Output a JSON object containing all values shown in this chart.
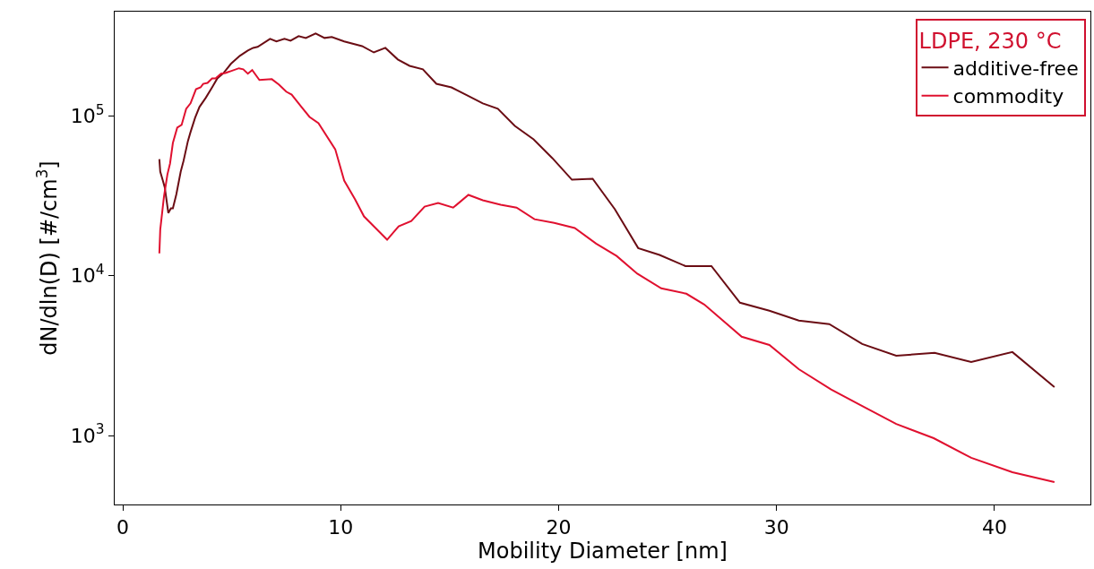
{
  "chart_data": {
    "type": "line",
    "xlabel": "Mobility Diameter [nm]",
    "ylabel": "dN/dln(D) [#/cm$^{3}$]",
    "legend_title": "LDPE, 230 °C",
    "legend": "top right",
    "log": "y",
    "marker": "none",
    "line_style": "solid",
    "xlim": [
      -0.37,
      44.4
    ],
    "xticks": [
      0,
      10,
      20,
      30,
      40
    ],
    "ylim": [
      370,
      450000
    ],
    "yticks": [
      {
        "value": 1000,
        "label": "10$^{3}$"
      },
      {
        "value": 10000,
        "label": "10$^{4}$"
      },
      {
        "value": 100000,
        "label": "10$^{5}$"
      }
    ],
    "series": [
      {
        "name": "additive-free",
        "color": "#6b0d14",
        "x": [
          1.68,
          1.72,
          1.84,
          1.93,
          2.09,
          2.21,
          2.3,
          2.46,
          2.66,
          2.79,
          2.99,
          3.11,
          3.32,
          3.52,
          3.81,
          4.1,
          4.34,
          4.63,
          4.96,
          5.37,
          5.74,
          5.98,
          6.19,
          6.76,
          7.05,
          7.42,
          7.7,
          8.07,
          8.4,
          8.85,
          9.26,
          9.59,
          10.16,
          10.98,
          11.52,
          12.05,
          12.62,
          13.16,
          13.77,
          14.39,
          15.08,
          15.78,
          16.52,
          17.21,
          17.99,
          18.85,
          19.71,
          20.61,
          21.56,
          22.58,
          23.65,
          24.63,
          25.82,
          27.01,
          28.32,
          29.67,
          31.02,
          32.42,
          33.93,
          35.49,
          37.25,
          38.93,
          40.82,
          42.75
        ],
        "values": [
          53700,
          44900,
          39400,
          35600,
          24700,
          26400,
          26400,
          32400,
          44900,
          52400,
          69700,
          79300,
          97500,
          114000,
          130000,
          151000,
          172000,
          186000,
          212000,
          238000,
          257000,
          267000,
          271000,
          304000,
          293000,
          304000,
          296000,
          316000,
          308000,
          329000,
          308000,
          312000,
          293000,
          274000,
          250000,
          267000,
          226000,
          206000,
          196000,
          159000,
          151000,
          135000,
          120000,
          111000,
          86700,
          71400,
          54500,
          39900,
          40500,
          26100,
          14900,
          13500,
          11500,
          11500,
          6780,
          6040,
          5240,
          4980,
          3740,
          3160,
          3290,
          2890,
          3330,
          2010
        ]
      },
      {
        "name": "commodity",
        "color": "#e0102f",
        "x": [
          1.68,
          1.72,
          1.89,
          2.05,
          2.17,
          2.3,
          2.5,
          2.7,
          2.91,
          3.11,
          3.36,
          3.57,
          3.69,
          3.89,
          4.1,
          4.26,
          4.51,
          4.71,
          4.96,
          5.33,
          5.53,
          5.74,
          5.94,
          6.27,
          6.84,
          7.17,
          7.5,
          7.75,
          8.2,
          8.57,
          8.98,
          9.75,
          10.16,
          10.66,
          11.07,
          11.6,
          12.13,
          12.66,
          13.24,
          13.85,
          14.47,
          15.16,
          15.86,
          16.52,
          17.34,
          18.07,
          18.89,
          19.8,
          20.74,
          21.72,
          22.66,
          23.61,
          24.71,
          25.86,
          26.68,
          28.4,
          29.67,
          31.02,
          32.5,
          33.93,
          35.49,
          37.21,
          38.93,
          40.82,
          42.75
        ],
        "values": [
          13800,
          19400,
          31200,
          43100,
          50400,
          67800,
          84500,
          87900,
          111000,
          120000,
          147000,
          151000,
          159000,
          161000,
          172000,
          172000,
          184000,
          186000,
          191000,
          199000,
          196000,
          184000,
          194000,
          168000,
          170000,
          157000,
          142000,
          136000,
          114000,
          98700,
          90100,
          61900,
          39400,
          30100,
          23500,
          19900,
          16800,
          20400,
          22000,
          27100,
          28500,
          26700,
          32100,
          29700,
          27800,
          26700,
          22600,
          21400,
          19900,
          15900,
          13300,
          10300,
          8340,
          7720,
          6610,
          4150,
          3690,
          2600,
          1940,
          1530,
          1180,
          962,
          725,
          589,
          511
        ]
      }
    ]
  }
}
